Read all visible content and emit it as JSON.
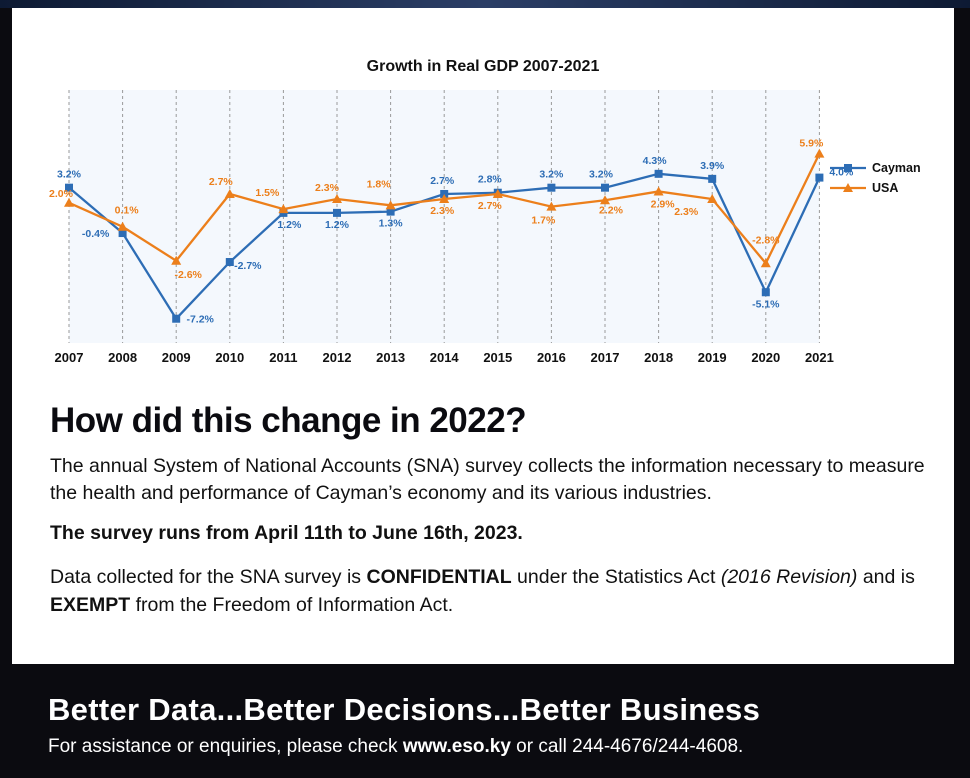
{
  "chart_data": {
    "type": "line",
    "title": "Growth in Real GDP 2007-2021",
    "categories": [
      "2007",
      "2008",
      "2009",
      "2010",
      "2011",
      "2012",
      "2013",
      "2014",
      "2015",
      "2016",
      "2017",
      "2018",
      "2019",
      "2020",
      "2021"
    ],
    "series": [
      {
        "name": "Cayman",
        "color": "#2d6db5",
        "marker": "square",
        "values": [
          3.2,
          -0.4,
          -7.2,
          -2.7,
          1.2,
          1.2,
          1.3,
          2.7,
          2.8,
          3.2,
          3.2,
          4.3,
          3.9,
          -5.1,
          4.0
        ],
        "labels": [
          "3.2%",
          "-0.4%",
          "-7.2%",
          "-2.7%",
          "1.2%",
          "1.2%",
          "1.3%",
          "2.7%",
          "2.8%",
          "3.2%",
          "3.2%",
          "4.3%",
          "3.9%",
          "-5.1%",
          "4.0%"
        ]
      },
      {
        "name": "USA",
        "color": "#ec7f1b",
        "marker": "triangle",
        "values": [
          2.0,
          0.1,
          -2.6,
          2.7,
          1.5,
          2.3,
          1.8,
          2.3,
          2.7,
          1.7,
          2.2,
          2.9,
          2.3,
          -2.8,
          5.9
        ],
        "labels": [
          "2.0%",
          "0.1%",
          "-2.6%",
          "2.7%",
          "1.5%",
          "2.3%",
          "1.8%",
          "2.3%",
          "2.7%",
          "1.7%",
          "2.2%",
          "2.9%",
          "2.3%",
          "-2.8%",
          "5.9%"
        ]
      }
    ],
    "legend_position": "right",
    "gridlines": "vertical-dashed"
  },
  "text": {
    "headline": "How did this change in 2022?",
    "intro": "The annual System of National Accounts (SNA) survey collects the information necessary to measure the health and performance of Cayman’s economy and its various industries.",
    "dates": "The survey runs from April 11th to June 16th, 2023.",
    "conf_a": "Data collected for the SNA survey is ",
    "conf_b": "CONFIDENTIAL",
    "conf_c": " under the Statistics Act ",
    "conf_d": "(2016 Revision)",
    "conf_e": " and is ",
    "conf_f": "EXEMPT",
    "conf_g": " from the Freedom of Information Act.",
    "tagline": "Better Data...Better Decisions...Better Business",
    "contact_a": "For assistance or enquiries, please check ",
    "contact_b": "www.eso.ky",
    "contact_c": " or call 244-4676/244-4608."
  },
  "colors": {
    "cayman": "#2d6db5",
    "usa": "#ec7f1b",
    "footer_bg": "#0b0b10"
  }
}
